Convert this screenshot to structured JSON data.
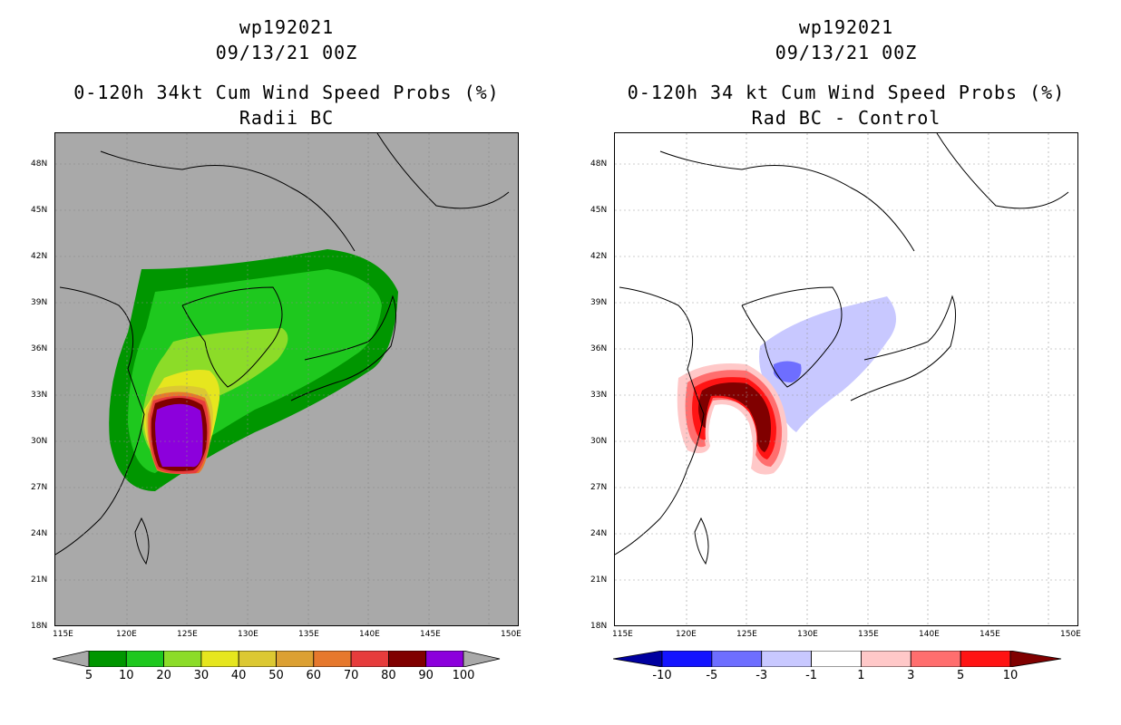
{
  "left_panel": {
    "storm_id": "wp192021",
    "datetime": "09/13/21 00Z",
    "title": "0-120h 34kt Cum Wind Speed Probs (%)",
    "subtitle": "Radii BC",
    "background_color": "#a9a9a9",
    "colorbar": {
      "labels": [
        "5",
        "10",
        "20",
        "30",
        "40",
        "50",
        "60",
        "70",
        "80",
        "90",
        "100"
      ],
      "colors": [
        "#009600",
        "#1ec81e",
        "#8cdc28",
        "#e6e61e",
        "#dcc832",
        "#dca032",
        "#e6782d",
        "#e63c3c",
        "#800000",
        "#8c00dc"
      ],
      "extend_color": "#a9a9a9"
    }
  },
  "right_panel": {
    "storm_id": "wp192021",
    "datetime": "09/13/21 00Z",
    "title": "0-120h 34 kt Cum Wind Speed Probs (%)",
    "subtitle": "Rad BC - Control",
    "background_color": "#ffffff",
    "colorbar": {
      "labels": [
        "-10",
        "-5",
        "-3",
        "-1",
        "1",
        "3",
        "5",
        "10"
      ],
      "colors": [
        "#0000a0",
        "#1414ff",
        "#6e6eff",
        "#c8c8ff",
        "#ffffff",
        "#ffc8c8",
        "#ff6e6e",
        "#ff1414",
        "#800000"
      ]
    }
  },
  "axes": {
    "lat_labels": [
      "48N",
      "45N",
      "42N",
      "39N",
      "36N",
      "33N",
      "30N",
      "27N",
      "24N",
      "21N",
      "18N"
    ],
    "lon_labels": [
      "115E",
      "120E",
      "125E",
      "130E",
      "135E",
      "140E",
      "145E",
      "150E"
    ]
  }
}
